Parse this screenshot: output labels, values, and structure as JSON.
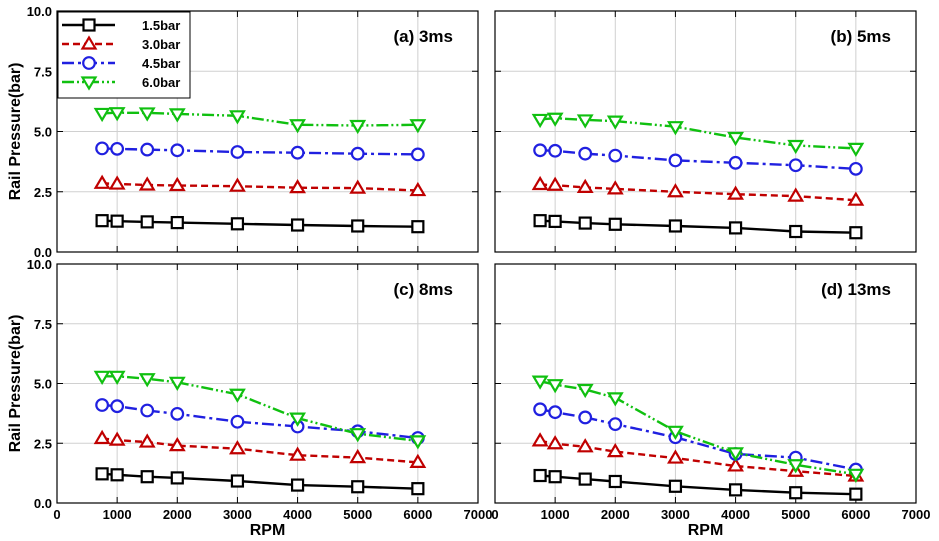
{
  "chart_data": {
    "type": "line",
    "xlabel": "RPM",
    "ylabel": "Rail Pressure(bar)",
    "xlim": [
      0,
      7000
    ],
    "ylim": [
      0,
      10
    ],
    "x_ticks": [
      "0",
      "1000",
      "2000",
      "3000",
      "4000",
      "5000",
      "6000",
      "7000"
    ],
    "y_ticks": [
      "0.0",
      "2.5",
      "5.0",
      "7.5",
      "10.0"
    ],
    "grid": true,
    "legend_placement": "top-left of panel (a)",
    "x": [
      750,
      1000,
      1500,
      2000,
      3000,
      4000,
      5000,
      6000
    ],
    "series_styles": [
      {
        "name": "1.5bar",
        "color": "#000000",
        "marker": "square",
        "dash": "solid"
      },
      {
        "name": "3.0bar",
        "color": "#c00000",
        "marker": "triangle-up",
        "dash": "dash"
      },
      {
        "name": "4.5bar",
        "color": "#2020e0",
        "marker": "circle",
        "dash": "dashdot"
      },
      {
        "name": "6.0bar",
        "color": "#10c010",
        "marker": "triangle-down",
        "dash": "dashdotdot"
      }
    ],
    "panels": [
      {
        "title": "(a) 3ms",
        "series": [
          {
            "name": "1.5bar",
            "values": [
              1.3,
              1.28,
              1.25,
              1.22,
              1.17,
              1.12,
              1.08,
              1.05
            ]
          },
          {
            "name": "3.0bar",
            "values": [
              2.85,
              2.82,
              2.78,
              2.76,
              2.73,
              2.67,
              2.65,
              2.55
            ]
          },
          {
            "name": "4.5bar",
            "values": [
              4.3,
              4.28,
              4.25,
              4.22,
              4.15,
              4.12,
              4.08,
              4.05
            ]
          },
          {
            "name": "6.0bar",
            "values": [
              5.75,
              5.78,
              5.77,
              5.73,
              5.65,
              5.28,
              5.25,
              5.28
            ]
          }
        ]
      },
      {
        "title": "(b) 5ms",
        "series": [
          {
            "name": "1.5bar",
            "values": [
              1.3,
              1.27,
              1.2,
              1.15,
              1.08,
              1.0,
              0.85,
              0.8
            ]
          },
          {
            "name": "3.0bar",
            "values": [
              2.8,
              2.77,
              2.68,
              2.62,
              2.5,
              2.4,
              2.32,
              2.15
            ]
          },
          {
            "name": "4.5bar",
            "values": [
              4.22,
              4.2,
              4.08,
              4.0,
              3.8,
              3.7,
              3.6,
              3.45
            ]
          },
          {
            "name": "6.0bar",
            "values": [
              5.5,
              5.55,
              5.48,
              5.43,
              5.2,
              4.75,
              4.42,
              4.3
            ]
          }
        ]
      },
      {
        "title": "(c) 8ms",
        "series": [
          {
            "name": "1.5bar",
            "values": [
              1.22,
              1.18,
              1.1,
              1.05,
              0.92,
              0.75,
              0.68,
              0.6
            ]
          },
          {
            "name": "3.0bar",
            "values": [
              2.7,
              2.63,
              2.55,
              2.4,
              2.27,
              2.0,
              1.9,
              1.7
            ]
          },
          {
            "name": "4.5bar",
            "values": [
              4.1,
              4.05,
              3.87,
              3.73,
              3.4,
              3.2,
              3.0,
              2.72
            ]
          },
          {
            "name": "6.0bar",
            "values": [
              5.3,
              5.3,
              5.2,
              5.05,
              4.55,
              3.55,
              2.9,
              2.6
            ]
          }
        ]
      },
      {
        "title": "(d) 13ms",
        "series": [
          {
            "name": "1.5bar",
            "values": [
              1.15,
              1.1,
              1.0,
              0.9,
              0.7,
              0.55,
              0.43,
              0.37
            ]
          },
          {
            "name": "3.0bar",
            "values": [
              2.6,
              2.48,
              2.35,
              2.15,
              1.88,
              1.55,
              1.33,
              1.13
            ]
          },
          {
            "name": "4.5bar",
            "values": [
              3.92,
              3.8,
              3.58,
              3.3,
              2.75,
              2.05,
              1.9,
              1.4
            ]
          },
          {
            "name": "6.0bar",
            "values": [
              5.1,
              4.95,
              4.75,
              4.4,
              3.0,
              2.1,
              1.6,
              1.2
            ]
          }
        ]
      }
    ]
  }
}
